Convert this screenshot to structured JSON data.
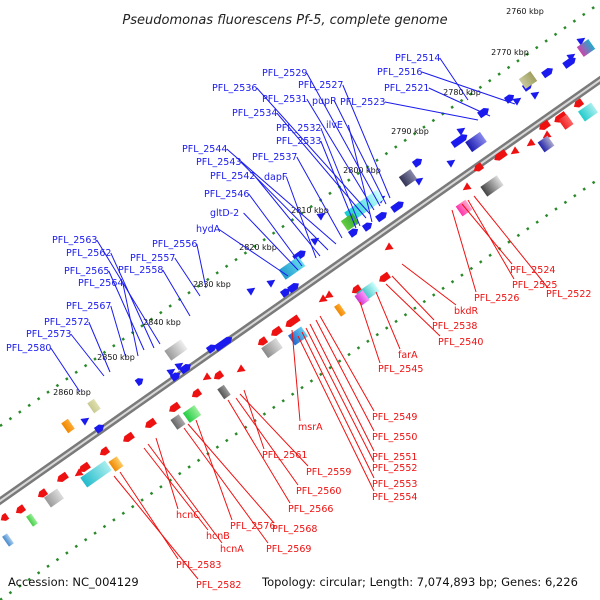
{
  "title": "Pseudomonas fluorescens Pf-5, complete genome",
  "footer": {
    "accession": "Accession: NC_004129",
    "summary": "Topology: circular; Length: 7,074,893 bp; Genes: 6,226"
  },
  "colors": {
    "forward_strand": "#1a1aee",
    "reverse_strand": "#ee1111",
    "backbone": "#8a8a8a",
    "tick": "#2a8a2a"
  },
  "kbp_ticks": [
    "2760 kbp",
    "2770 kbp",
    "2780 kbp",
    "2790 kbp",
    "2800 kbp",
    "2810 kbp",
    "2820 kbp",
    "2830 kbp",
    "2840 kbp",
    "2850 kbp",
    "2860 kbp"
  ],
  "forward_labels": [
    "PFL_2514",
    "PFL_2516",
    "PFL_2521",
    "PFL_2523",
    "PFL_2527",
    "pupR",
    "PFL_2529",
    "PFL_2531",
    "PFL_2536",
    "PFL_2534",
    "ilvE",
    "PFL_2532",
    "PFL_2533",
    "PFL_2537",
    "PFL_2544",
    "PFL_2543",
    "PFL_2542",
    "dapF",
    "PFL_2546",
    "gltD-2",
    "hydA",
    "PFL_2556",
    "PFL_2557",
    "PFL_2563",
    "PFL_2562",
    "PFL_2558",
    "PFL_2565",
    "PFL_2564",
    "PFL_2567",
    "PFL_2572",
    "PFL_2573",
    "PFL_2580"
  ],
  "reverse_labels": [
    "PFL_2524",
    "PFL_2525",
    "PFL_2522",
    "PFL_2526",
    "bkdR",
    "PFL_2538",
    "PFL_2540",
    "farA",
    "PFL_2545",
    "PFL_2549",
    "msrA",
    "PFL_2550",
    "PFL_2551",
    "PFL_2552",
    "PFL_2553",
    "PFL_2554",
    "PFL_2561",
    "PFL_2559",
    "PFL_2560",
    "PFL_2566",
    "hcnC",
    "PFL_2576",
    "PFL_2568",
    "hcnA",
    "PFL_2569",
    "hcnB",
    "PFL_2583",
    "PFL_2582"
  ]
}
